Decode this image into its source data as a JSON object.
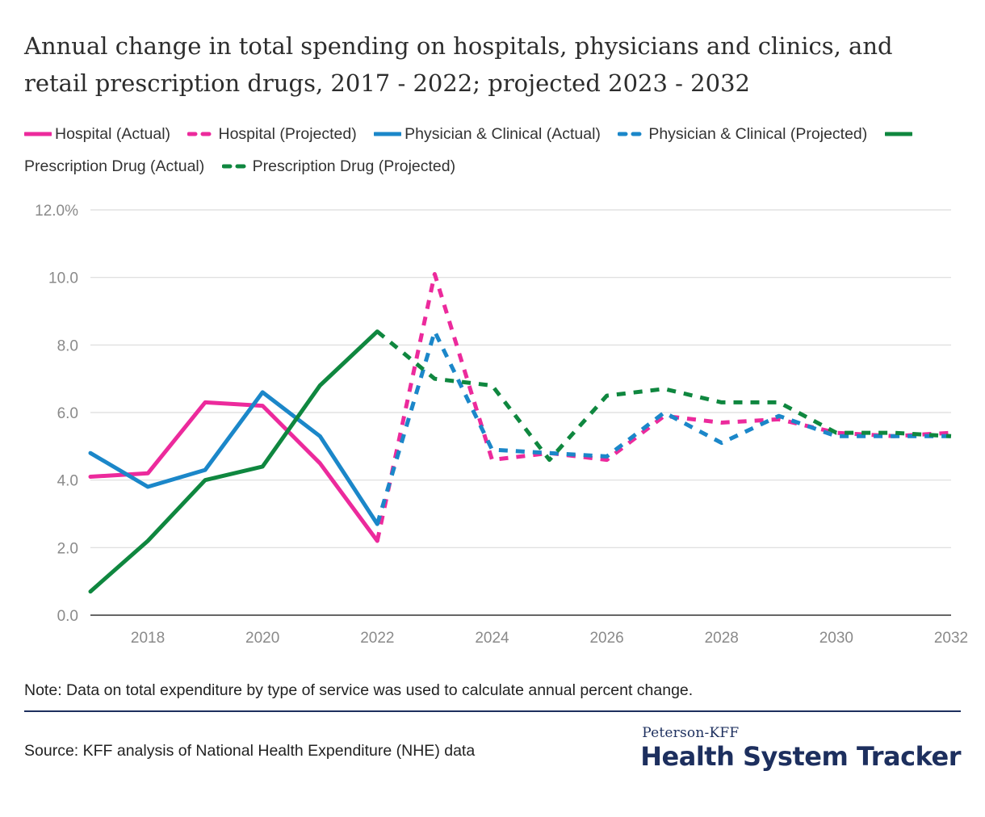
{
  "colors": {
    "hospital": "#ec2a9c",
    "physician": "#1b87c9",
    "drug": "#0f873f",
    "grid": "#dcdcdc",
    "axis": "#333333",
    "brand": "#1d2f5e"
  },
  "legend": {
    "hospital_actual": "Hospital (Actual)",
    "hospital_projected": "Hospital (Projected)",
    "physician_actual": "Physician & Clinical (Actual)",
    "physician_projected": "Physician & Clinical (Projected)",
    "drug_actual": "Prescription Drug (Actual)",
    "drug_projected": "Prescription Drug (Projected)"
  },
  "chart_data": {
    "type": "line",
    "title": "Annual change in total spending on hospitals, physicians and clinics, and retail prescription drugs, 2017 - 2022; projected 2023 - 2032",
    "x": [
      2017,
      2018,
      2019,
      2020,
      2021,
      2022,
      2023,
      2024,
      2025,
      2026,
      2027,
      2028,
      2029,
      2030,
      2031,
      2032
    ],
    "x_ticks": [
      2018,
      2020,
      2022,
      2024,
      2026,
      2028,
      2030,
      2032
    ],
    "x_tick_labels": [
      "2018",
      "2020",
      "2022",
      "2024",
      "2026",
      "2028",
      "2030",
      "2032"
    ],
    "xlim": [
      2017,
      2032
    ],
    "y_ticks": [
      0,
      2,
      4,
      6,
      8,
      10,
      12
    ],
    "y_tick_labels": [
      "0.0",
      "2.0",
      "4.0",
      "6.0",
      "8.0",
      "10.0",
      "12.0%"
    ],
    "ylim": [
      0,
      12
    ],
    "grid": true,
    "legend_position": "top",
    "series": [
      {
        "name": "Hospital (Actual)",
        "color_key": "hospital",
        "dashed": false,
        "x": [
          2017,
          2018,
          2019,
          2020,
          2021,
          2022
        ],
        "values": [
          4.1,
          4.2,
          6.3,
          6.2,
          4.5,
          2.2
        ]
      },
      {
        "name": "Hospital (Projected)",
        "color_key": "hospital",
        "dashed": true,
        "x": [
          2022,
          2023,
          2024,
          2025,
          2026,
          2027,
          2028,
          2029,
          2030,
          2031,
          2032
        ],
        "values": [
          2.2,
          10.1,
          4.6,
          4.8,
          4.6,
          5.9,
          5.7,
          5.8,
          5.4,
          5.3,
          5.4
        ]
      },
      {
        "name": "Physician & Clinical (Actual)",
        "color_key": "physician",
        "dashed": false,
        "x": [
          2017,
          2018,
          2019,
          2020,
          2021,
          2022
        ],
        "values": [
          4.8,
          3.8,
          4.3,
          6.6,
          5.3,
          2.7
        ]
      },
      {
        "name": "Physician & Clinical (Projected)",
        "color_key": "physician",
        "dashed": true,
        "x": [
          2022,
          2023,
          2024,
          2025,
          2026,
          2027,
          2028,
          2029,
          2030,
          2031,
          2032
        ],
        "values": [
          2.7,
          8.4,
          4.9,
          4.8,
          4.7,
          6.0,
          5.1,
          5.9,
          5.3,
          5.3,
          5.3
        ]
      },
      {
        "name": "Prescription Drug (Actual)",
        "color_key": "drug",
        "dashed": false,
        "x": [
          2017,
          2018,
          2019,
          2020,
          2021,
          2022
        ],
        "values": [
          0.7,
          2.2,
          4.0,
          4.4,
          6.8,
          8.4
        ]
      },
      {
        "name": "Prescription Drug (Projected)",
        "color_key": "drug",
        "dashed": true,
        "x": [
          2022,
          2023,
          2024,
          2025,
          2026,
          2027,
          2028,
          2029,
          2030,
          2031,
          2032
        ],
        "values": [
          8.4,
          7.0,
          6.8,
          4.6,
          6.5,
          6.7,
          6.3,
          6.3,
          5.4,
          5.4,
          5.3
        ]
      }
    ]
  },
  "note": "Note: Data on total expenditure by type of service was used to calculate annual percent change.",
  "source": "Source: KFF analysis of National Health Expenditure (NHE) data",
  "logo": {
    "top": "Peterson-KFF",
    "main": "Health System Tracker"
  }
}
